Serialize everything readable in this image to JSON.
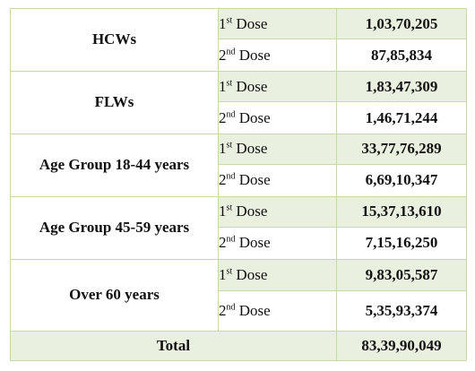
{
  "groups": [
    {
      "name": "HCWs",
      "doses": [
        {
          "num": "1",
          "sup": "st",
          "label": "Dose",
          "value": "1,03,70,205"
        },
        {
          "num": "2",
          "sup": "nd",
          "label": "Dose",
          "value": "87,85,834"
        }
      ]
    },
    {
      "name": "FLWs",
      "doses": [
        {
          "num": "1",
          "sup": "st",
          "label": "Dose",
          "value": "1,83,47,309"
        },
        {
          "num": "2",
          "sup": "nd",
          "label": "Dose",
          "value": "1,46,71,244"
        }
      ]
    },
    {
      "name": "Age Group 18-44 years",
      "doses": [
        {
          "num": "1",
          "sup": "st",
          "label": "Dose",
          "value": "33,77,76,289"
        },
        {
          "num": "2",
          "sup": "nd",
          "label": "Dose",
          "value": "6,69,10,347"
        }
      ]
    },
    {
      "name": "Age Group 45-59 years",
      "doses": [
        {
          "num": "1",
          "sup": "st",
          "label": "Dose",
          "value": "15,37,13,610"
        },
        {
          "num": "2",
          "sup": "nd",
          "label": "Dose",
          "value": "7,15,16,250"
        }
      ]
    },
    {
      "name": "Over 60 years",
      "doses": [
        {
          "num": "1",
          "sup": "st",
          "label": "Dose",
          "value": "9,83,05,587"
        },
        {
          "num": "2",
          "sup": "nd",
          "label": "Dose",
          "value": "5,35,93,374"
        }
      ]
    }
  ],
  "total": {
    "label": "Total",
    "value": "83,39,90,049"
  },
  "colors": {
    "border": "#c7d8ad",
    "shade": "#e9f0df",
    "text": "#111111"
  }
}
